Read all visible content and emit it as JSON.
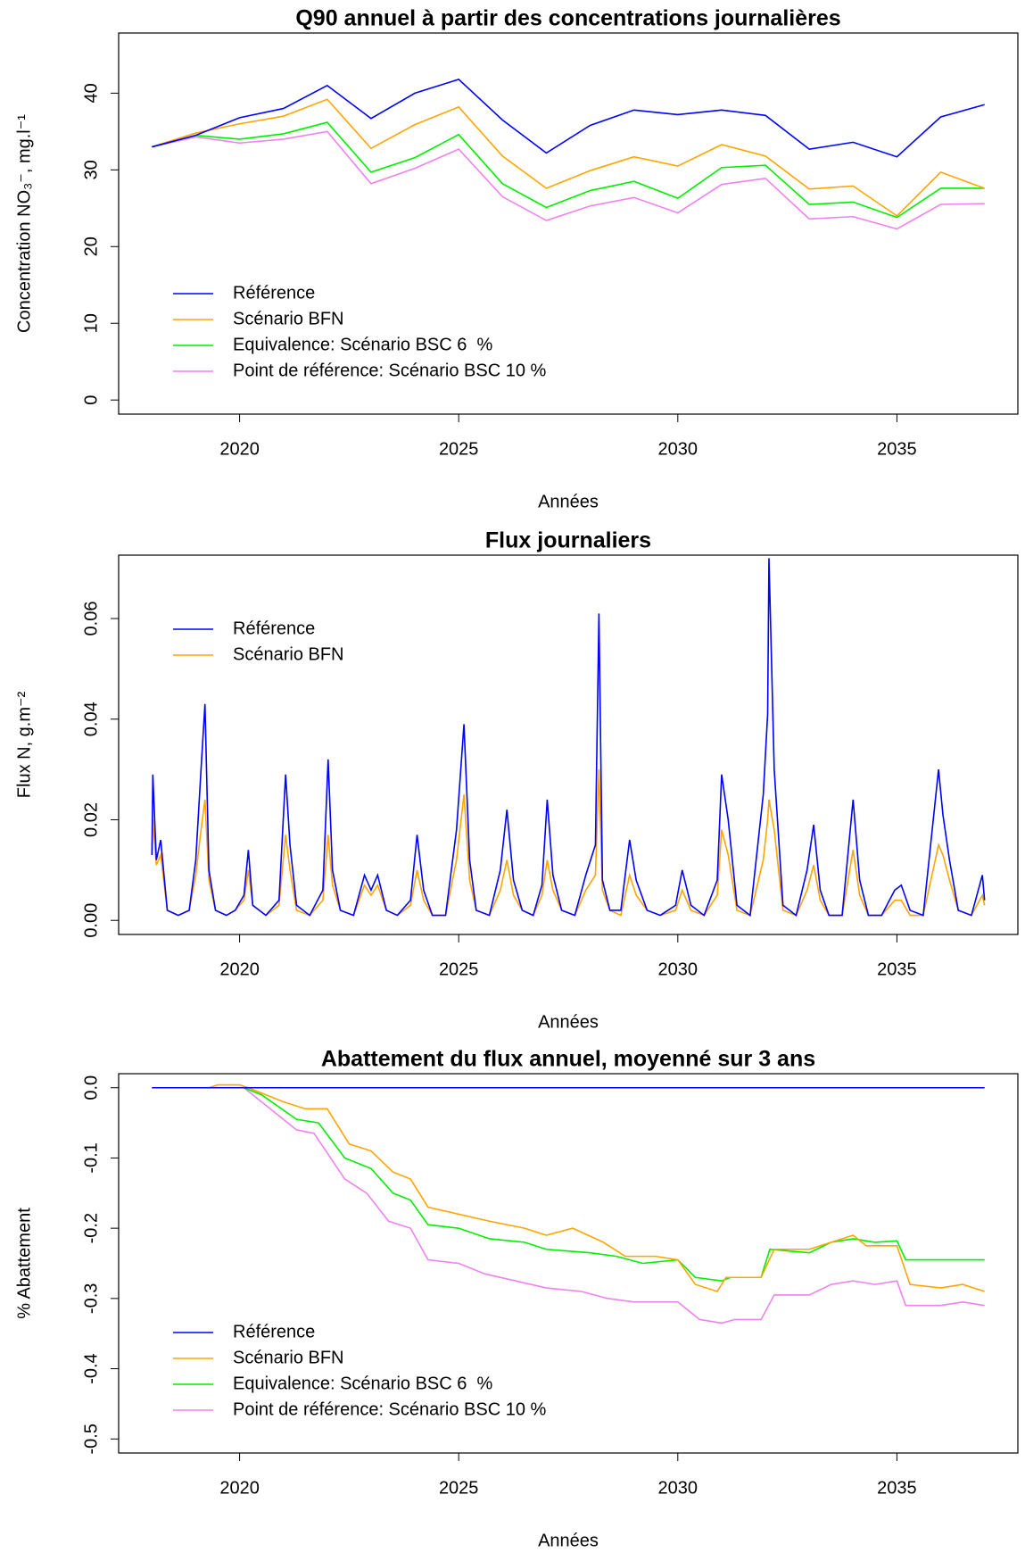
{
  "chart_data": [
    {
      "type": "line",
      "title": "Q90 annuel à partir des concentrations journalières",
      "xlabel": "Années",
      "ylabel": "Concentration NO₃⁻, mg.l⁻¹",
      "x": [
        2018,
        2019,
        2020,
        2021,
        2022,
        2023,
        2024,
        2025,
        2026,
        2027,
        2028,
        2029,
        2030,
        2031,
        2032,
        2033,
        2034,
        2035,
        2036,
        2037
      ],
      "series": [
        {
          "name": "Référence",
          "color": "#0000ff",
          "values": [
            33,
            34.5,
            36.8,
            38,
            41,
            36.7,
            40,
            41.8,
            36.5,
            32.2,
            35.8,
            37.8,
            37.2,
            37.8,
            37.1,
            32.7,
            33.6,
            31.7,
            36.9,
            38.5
          ]
        },
        {
          "name": "Scénario BFN",
          "color": "#ffa500",
          "values": [
            33,
            34.8,
            36,
            37,
            39.2,
            32.8,
            35.9,
            38.2,
            31.8,
            27.6,
            29.9,
            31.7,
            30.5,
            33.3,
            31.8,
            27.5,
            27.9,
            24,
            29.7,
            27.6
          ]
        },
        {
          "name": "Equivalence: Scénario BSC 6  %",
          "color": "#00ee00",
          "values": [
            33,
            34.5,
            34,
            34.7,
            36.2,
            29.7,
            31.6,
            34.6,
            28.2,
            25.1,
            27.3,
            28.5,
            26.3,
            30.3,
            30.6,
            25.5,
            25.8,
            23.8,
            27.6,
            27.6
          ]
        },
        {
          "name": "Point de référence: Scénario BSC 10 %",
          "color": "#ee82ee",
          "values": [
            33,
            34.3,
            33.5,
            34,
            35,
            28.2,
            30.2,
            32.7,
            26.5,
            23.4,
            25.3,
            26.4,
            24.4,
            28.1,
            28.9,
            23.6,
            23.9,
            22.3,
            25.5,
            25.6
          ]
        }
      ],
      "xlim": [
        2017.24,
        2037.76
      ],
      "xticks": [
        2020,
        2025,
        2030,
        2035
      ],
      "ylim": [
        -1.84,
        47.84
      ],
      "yticks": [
        0,
        10,
        20,
        30,
        40
      ],
      "legend": "bottomleft"
    },
    {
      "type": "line",
      "title": "Flux journaliers",
      "xlabel": "Années",
      "ylabel": "Flux N, g.m⁻²",
      "x": [
        2018,
        2018.02,
        2018.1,
        2018.2,
        2018.35,
        2018.6,
        2018.85,
        2019,
        2019.12,
        2019.21,
        2019.3,
        2019.45,
        2019.7,
        2019.9,
        2020.1,
        2020.2,
        2020.3,
        2020.6,
        2020.9,
        2021.05,
        2021.15,
        2021.3,
        2021.6,
        2021.9,
        2022.02,
        2022.12,
        2022.3,
        2022.6,
        2022.85,
        2023,
        2023.15,
        2023.35,
        2023.6,
        2023.9,
        2024.05,
        2024.2,
        2024.4,
        2024.7,
        2024.95,
        2025.12,
        2025.25,
        2025.4,
        2025.7,
        2025.95,
        2026.1,
        2026.25,
        2026.45,
        2026.7,
        2026.9,
        2027.02,
        2027.15,
        2027.35,
        2027.65,
        2027.9,
        2028.12,
        2028.2,
        2028.28,
        2028.45,
        2028.7,
        2028.9,
        2029.05,
        2029.3,
        2029.6,
        2029.95,
        2030.1,
        2030.3,
        2030.6,
        2030.9,
        2031,
        2031.15,
        2031.35,
        2031.65,
        2031.95,
        2032.05,
        2032.08,
        2032.2,
        2032.4,
        2032.7,
        2032.95,
        2033.1,
        2033.25,
        2033.45,
        2033.75,
        2034,
        2034.15,
        2034.35,
        2034.65,
        2034.95,
        2035.1,
        2035.3,
        2035.6,
        2035.95,
        2036.05,
        2036.2,
        2036.4,
        2036.7,
        2036.95,
        2037
      ],
      "series": [
        {
          "name": "Référence",
          "color": "#0000ff",
          "values": [
            0.013,
            0.029,
            0.012,
            0.016,
            0.002,
            0.001,
            0.002,
            0.012,
            0.03,
            0.043,
            0.01,
            0.002,
            0.001,
            0.002,
            0.005,
            0.014,
            0.003,
            0.001,
            0.004,
            0.029,
            0.015,
            0.003,
            0.001,
            0.006,
            0.032,
            0.01,
            0.002,
            0.001,
            0.009,
            0.006,
            0.009,
            0.002,
            0.001,
            0.004,
            0.017,
            0.006,
            0.001,
            0.001,
            0.018,
            0.039,
            0.012,
            0.002,
            0.001,
            0.01,
            0.022,
            0.008,
            0.002,
            0.001,
            0.007,
            0.024,
            0.009,
            0.002,
            0.001,
            0.009,
            0.015,
            0.061,
            0.008,
            0.002,
            0.002,
            0.016,
            0.008,
            0.002,
            0.001,
            0.003,
            0.01,
            0.003,
            0.001,
            0.008,
            0.029,
            0.02,
            0.003,
            0.001,
            0.025,
            0.041,
            0.072,
            0.03,
            0.003,
            0.001,
            0.01,
            0.019,
            0.006,
            0.001,
            0.001,
            0.024,
            0.008,
            0.001,
            0.001,
            0.006,
            0.007,
            0.002,
            0.001,
            0.03,
            0.021,
            0.012,
            0.002,
            0.001,
            0.009,
            0.004
          ]
        },
        {
          "name": "Scénario BFN",
          "color": "#ffa500",
          "values": [
            0.013,
            0.02,
            0.011,
            0.013,
            0.002,
            0.001,
            0.002,
            0.009,
            0.018,
            0.024,
            0.008,
            0.002,
            0.001,
            0.002,
            0.004,
            0.01,
            0.003,
            0.001,
            0.003,
            0.017,
            0.01,
            0.002,
            0.001,
            0.004,
            0.017,
            0.007,
            0.002,
            0.001,
            0.007,
            0.005,
            0.007,
            0.002,
            0.001,
            0.003,
            0.01,
            0.004,
            0.001,
            0.001,
            0.012,
            0.025,
            0.008,
            0.002,
            0.001,
            0.006,
            0.012,
            0.005,
            0.002,
            0.001,
            0.005,
            0.012,
            0.006,
            0.002,
            0.001,
            0.006,
            0.009,
            0.03,
            0.006,
            0.002,
            0.001,
            0.009,
            0.005,
            0.002,
            0.001,
            0.002,
            0.006,
            0.002,
            0.001,
            0.005,
            0.018,
            0.013,
            0.002,
            0.001,
            0.012,
            0.02,
            0.024,
            0.018,
            0.002,
            0.001,
            0.006,
            0.011,
            0.004,
            0.001,
            0.001,
            0.014,
            0.005,
            0.001,
            0.001,
            0.004,
            0.004,
            0.001,
            0.001,
            0.015,
            0.013,
            0.008,
            0.002,
            0.001,
            0.005,
            0.003
          ]
        }
      ],
      "xlim": [
        2017.24,
        2037.76
      ],
      "xticks": [
        2020,
        2025,
        2030,
        2035
      ],
      "ylim": [
        -0.0028,
        0.0726
      ],
      "yticks": [
        {
          "value": 0,
          "label": "0.00"
        },
        0.02,
        0.04,
        0.06
      ],
      "legend": "topleft"
    },
    {
      "type": "line",
      "title": "Abattement du flux annuel, moyenné sur 3 ans",
      "xlabel": "Années",
      "ylabel": "% Abattement",
      "series": [
        {
          "name": "Référence",
          "color": "#0000ff",
          "x": [
            2018,
            2037
          ],
          "values": [
            0,
            0
          ]
        },
        {
          "name": "Scénario BFN",
          "color": "#ffa500",
          "x": [
            2018,
            2019.3,
            2019.5,
            2020,
            2020.2,
            2021,
            2021.5,
            2022,
            2022.5,
            2023,
            2023.5,
            2023.9,
            2024.3,
            2025,
            2025.7,
            2026.5,
            2027,
            2027.6,
            2028.3,
            2028.8,
            2029.5,
            2030,
            2030.4,
            2030.9,
            2031.1,
            2031.9,
            2032.2,
            2033,
            2033.5,
            2034,
            2034.3,
            2035,
            2035.3,
            2036,
            2036.5,
            2037
          ],
          "values": [
            0,
            0,
            0.004,
            0.004,
            0,
            -0.02,
            -0.03,
            -0.03,
            -0.08,
            -0.09,
            -0.12,
            -0.13,
            -0.17,
            -0.18,
            -0.19,
            -0.2,
            -0.21,
            -0.2,
            -0.22,
            -0.24,
            -0.24,
            -0.245,
            -0.28,
            -0.29,
            -0.27,
            -0.27,
            -0.23,
            -0.23,
            -0.22,
            -0.21,
            -0.225,
            -0.225,
            -0.28,
            -0.285,
            -0.28,
            -0.29
          ]
        },
        {
          "name": "Equivalence: Scénario BSC 6  %",
          "color": "#00ee00",
          "x": [
            2018,
            2020.1,
            2020.5,
            2021.3,
            2021.8,
            2022.4,
            2023,
            2023.5,
            2023.9,
            2024.3,
            2025,
            2025.7,
            2026.5,
            2027,
            2028,
            2028.6,
            2029.2,
            2030,
            2030.4,
            2031,
            2031.2,
            2031.9,
            2032.1,
            2033,
            2033.5,
            2034,
            2034.5,
            2035,
            2035.2,
            2036,
            2037
          ],
          "values": [
            0,
            0,
            -0.01,
            -0.045,
            -0.05,
            -0.1,
            -0.115,
            -0.15,
            -0.16,
            -0.195,
            -0.2,
            -0.215,
            -0.22,
            -0.23,
            -0.235,
            -0.24,
            -0.25,
            -0.245,
            -0.27,
            -0.275,
            -0.27,
            -0.27,
            -0.23,
            -0.235,
            -0.22,
            -0.215,
            -0.22,
            -0.218,
            -0.245,
            -0.245,
            -0.245
          ]
        },
        {
          "name": "Point de référence: Scénario BSC 10 %",
          "color": "#ee82ee",
          "x": [
            2018,
            2020.1,
            2020.5,
            2021.3,
            2021.7,
            2022.4,
            2022.9,
            2023.4,
            2023.9,
            2024.3,
            2025,
            2025.6,
            2026.3,
            2027,
            2027.8,
            2028.4,
            2029,
            2030,
            2030.5,
            2031,
            2031.3,
            2031.9,
            2032.2,
            2033,
            2033.5,
            2034,
            2034.5,
            2035,
            2035.2,
            2036,
            2036.5,
            2037
          ],
          "values": [
            0,
            0,
            -0.02,
            -0.06,
            -0.065,
            -0.13,
            -0.15,
            -0.19,
            -0.2,
            -0.245,
            -0.25,
            -0.265,
            -0.275,
            -0.285,
            -0.29,
            -0.3,
            -0.305,
            -0.305,
            -0.33,
            -0.335,
            -0.33,
            -0.33,
            -0.295,
            -0.295,
            -0.28,
            -0.275,
            -0.28,
            -0.275,
            -0.31,
            -0.31,
            -0.305,
            -0.31
          ]
        }
      ],
      "xlim": [
        2017.24,
        2037.76
      ],
      "xticks": [
        2020,
        2025,
        2030,
        2035
      ],
      "ylim": [
        -0.52,
        0.02
      ],
      "yticks": [
        {
          "value": 0,
          "label": "0.0"
        },
        -0.1,
        -0.2,
        -0.3,
        -0.4,
        -0.5
      ],
      "legend": "bottomleft"
    }
  ]
}
